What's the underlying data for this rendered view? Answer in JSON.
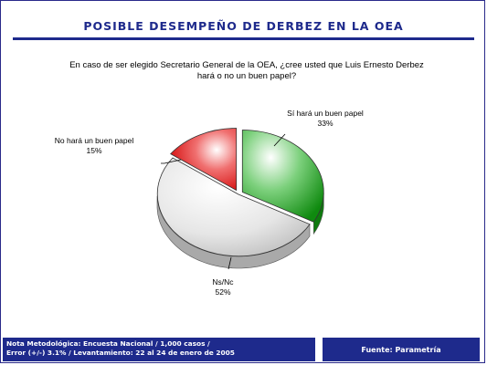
{
  "title": "POSIBLE DESEMPEÑO DE DERBEZ EN LA OEA",
  "question_line1": "En caso de ser elegido Secretario General de la OEA, ¿cree usted que Luis Ernesto Derbez",
  "question_line2": "hará o no un buen papel?",
  "chart_data": {
    "type": "pie",
    "slices": [
      {
        "name": "Sí hará un buen papel",
        "value": 33,
        "label": "33%",
        "color": "#2ea52e"
      },
      {
        "name": "Ns/Nc",
        "value": 52,
        "label": "52%",
        "color": "#dcdcdc"
      },
      {
        "name": "No hará un buen papel",
        "value": 15,
        "label": "15%",
        "color": "#e21a1a"
      }
    ],
    "style": "3d-exploded"
  },
  "footer": {
    "note_line1": "Nota Metodológica: Encuesta Nacional / 1,000 casos /",
    "note_line2": "Error (+/-) 3.1% / Levantamiento: 22 al 24 de enero de 2005",
    "source": "Fuente: Parametría"
  }
}
